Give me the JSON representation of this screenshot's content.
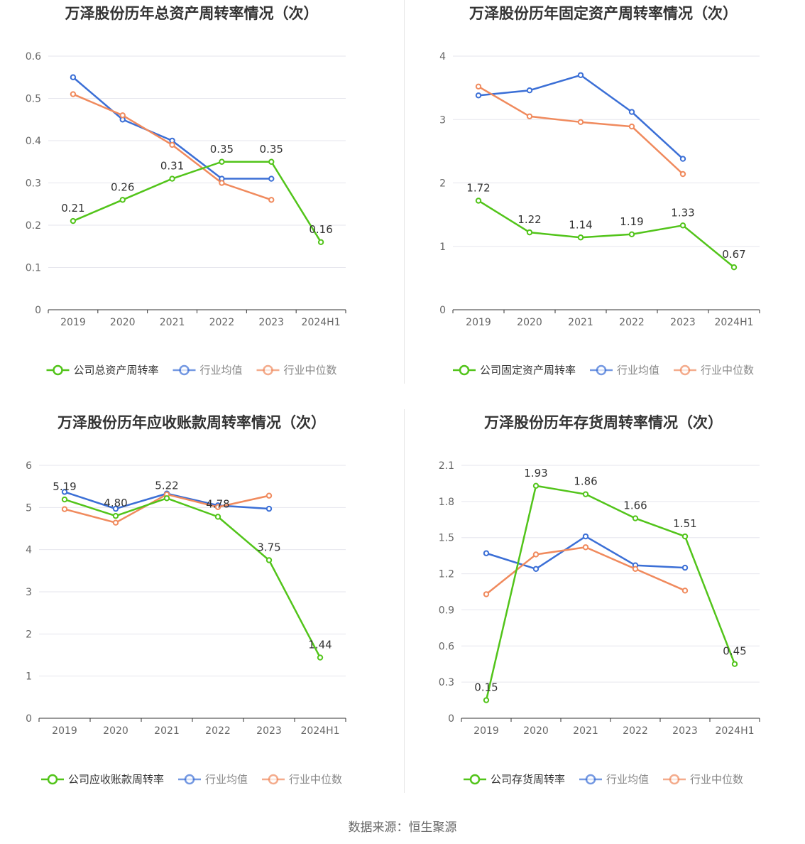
{
  "source_text": "数据来源：恒生聚源",
  "colors": {
    "company": "#52c41a",
    "avg": "#3b6fd6",
    "median": "#f08a5d",
    "grid": "#e6e6ee",
    "axis": "#333333",
    "tick": "#666666"
  },
  "charts": [
    {
      "title": "万泽股份历年总资产周转率情况（次）",
      "legend": [
        "公司总资产周转率",
        "行业均值",
        "行业中位数"
      ]
    },
    {
      "title": "万泽股份历年固定资产周转率情况（次）",
      "legend": [
        "公司固定资产周转率",
        "行业均值",
        "行业中位数"
      ]
    },
    {
      "title": "万泽股份历年应收账款周转率情况（次）",
      "legend": [
        "公司应收账款周转率",
        "行业均值",
        "行业中位数"
      ]
    },
    {
      "title": "万泽股份历年存货周转率情况（次）",
      "legend": [
        "公司存货周转率",
        "行业均值",
        "行业中位数"
      ]
    }
  ],
  "chart_data": [
    {
      "type": "line",
      "title": "万泽股份历年总资产周转率情况（次）",
      "categories": [
        "2019",
        "2020",
        "2021",
        "2022",
        "2023",
        "2024H1"
      ],
      "ylim": [
        0,
        0.6
      ],
      "yticks": [
        "0",
        "0.1",
        "0.2",
        "0.3",
        "0.4",
        "0.5",
        "0.6"
      ],
      "grid": true,
      "legend_position": "bottom",
      "series": [
        {
          "name": "公司总资产周转率",
          "values": [
            0.21,
            0.26,
            0.31,
            0.35,
            0.35,
            0.16
          ],
          "labels": [
            "0.21",
            "0.26",
            "0.31",
            "0.35",
            "0.35",
            "0.16"
          ]
        },
        {
          "name": "行业均值",
          "values": [
            0.55,
            0.45,
            0.4,
            0.31,
            0.31,
            null
          ]
        },
        {
          "name": "行业中位数",
          "values": [
            0.51,
            0.46,
            0.39,
            0.3,
            0.26,
            null
          ]
        }
      ]
    },
    {
      "type": "line",
      "title": "万泽股份历年固定资产周转率情况（次）",
      "categories": [
        "2019",
        "2020",
        "2021",
        "2022",
        "2023",
        "2024H1"
      ],
      "ylim": [
        0,
        4
      ],
      "yticks": [
        "0",
        "1",
        "2",
        "3",
        "4"
      ],
      "grid": true,
      "legend_position": "bottom",
      "series": [
        {
          "name": "公司固定资产周转率",
          "values": [
            1.72,
            1.22,
            1.14,
            1.19,
            1.33,
            0.67
          ],
          "labels": [
            "1.72",
            "1.22",
            "1.14",
            "1.19",
            "1.33",
            "0.67"
          ]
        },
        {
          "name": "行业均值",
          "values": [
            3.38,
            3.46,
            3.7,
            3.12,
            2.38,
            null
          ]
        },
        {
          "name": "行业中位数",
          "values": [
            3.52,
            3.05,
            2.96,
            2.89,
            2.14,
            null
          ]
        }
      ]
    },
    {
      "type": "line",
      "title": "万泽股份历年应收账款周转率情况（次）",
      "categories": [
        "2019",
        "2020",
        "2021",
        "2022",
        "2023",
        "2024H1"
      ],
      "ylim": [
        0,
        6
      ],
      "yticks": [
        "0",
        "1",
        "2",
        "3",
        "4",
        "5",
        "6"
      ],
      "grid": true,
      "legend_position": "bottom",
      "series": [
        {
          "name": "公司应收账款周转率",
          "values": [
            5.19,
            4.8,
            5.22,
            4.78,
            3.75,
            1.44
          ],
          "labels": [
            "5.19",
            "4.80",
            "5.22",
            "4.78",
            "3.75",
            "1.44"
          ]
        },
        {
          "name": "行业均值",
          "values": [
            5.37,
            4.97,
            5.33,
            5.05,
            4.97,
            null
          ]
        },
        {
          "name": "行业中位数",
          "values": [
            4.96,
            4.64,
            5.31,
            5.01,
            5.28,
            null
          ]
        }
      ]
    },
    {
      "type": "line",
      "title": "万泽股份历年存货周转率情况（次）",
      "categories": [
        "2019",
        "2020",
        "2021",
        "2022",
        "2023",
        "2024H1"
      ],
      "ylim": [
        0,
        2.1
      ],
      "yticks": [
        "0",
        "0.3",
        "0.6",
        "0.9",
        "1.2",
        "1.5",
        "1.8",
        "2.1"
      ],
      "grid": true,
      "legend_position": "bottom",
      "series": [
        {
          "name": "公司存货周转率",
          "values": [
            0.15,
            1.93,
            1.86,
            1.66,
            1.51,
            0.45
          ],
          "labels": [
            "0.15",
            "1.93",
            "1.86",
            "1.66",
            "1.51",
            "0.45"
          ]
        },
        {
          "name": "行业均值",
          "values": [
            1.37,
            1.24,
            1.51,
            1.27,
            1.25,
            null
          ]
        },
        {
          "name": "行业中位数",
          "values": [
            1.03,
            1.36,
            1.42,
            1.24,
            1.06,
            null
          ]
        }
      ]
    }
  ]
}
